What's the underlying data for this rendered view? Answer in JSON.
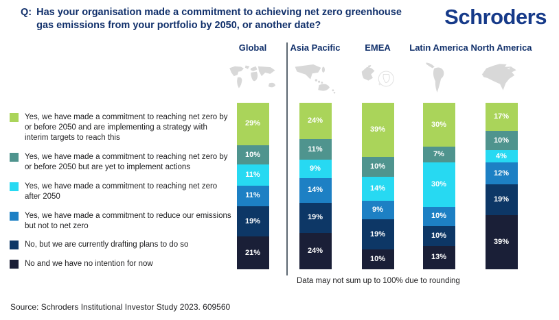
{
  "title": {
    "prefix": "Q:",
    "text": "Has your organisation made a commitment to achieving net zero greenhouse gas emissions from your portfolio by 2050, or another date?"
  },
  "logo_text": "Schroders",
  "chart_data": {
    "type": "bar",
    "variant": "stacked-column",
    "stacked": true,
    "grid": false,
    "legend_position": "left",
    "value_suffix": "%",
    "categories": [
      "Global",
      "Asia Pacific",
      "EMEA",
      "Latin America",
      "North America"
    ],
    "map_icons": [
      "world-map",
      "asia-pacific-map",
      "emea-africa-map",
      "latin-america-map",
      "north-america-map"
    ],
    "series": [
      {
        "name": "Yes, we have made a commitment to reaching net zero by or before 2050 and are implementing a strategy with interim targets to reach this",
        "color": "#aad45a",
        "values": [
          29,
          24,
          39,
          30,
          17
        ]
      },
      {
        "name": "Yes, we have made a commitment to reaching net zero by or before 2050 but are yet to implement actions",
        "color": "#4f948e",
        "values": [
          10,
          11,
          10,
          7,
          10
        ]
      },
      {
        "name": "Yes, we have made a commitment to reaching net zero after 2050",
        "color": "#27d9f2",
        "values": [
          11,
          9,
          14,
          30,
          4
        ]
      },
      {
        "name": "Yes, we have made a commitment to reduce our emissions but not to net zero",
        "color": "#1d80c4",
        "values": [
          11,
          14,
          9,
          10,
          12
        ]
      },
      {
        "name": "No, but we are currently drafting plans to do so",
        "color": "#0d3766",
        "values": [
          19,
          19,
          19,
          10,
          19
        ]
      },
      {
        "name": "No and we have no intention for now",
        "color": "#1a1f37",
        "values": [
          21,
          24,
          10,
          13,
          39
        ]
      }
    ],
    "note": "Data may not sum up to 100% due to rounding"
  },
  "source": "Source: Schroders Institutional Investor Study 2023. 609560",
  "colors": {
    "title": "#11306b",
    "logo": "#163a89",
    "divider": "#5b6670",
    "map": "#d8d8d8",
    "segment_label": "#ffffff"
  }
}
